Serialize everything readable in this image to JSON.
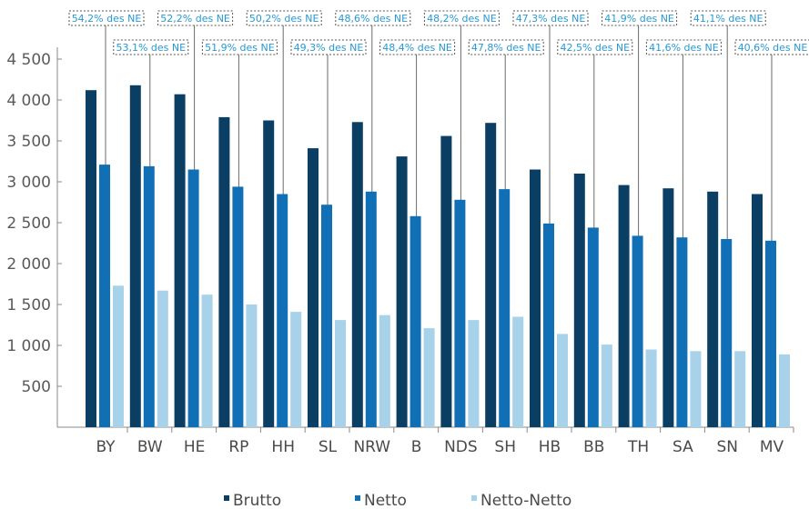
{
  "chart_data": {
    "type": "bar",
    "categories": [
      "BY",
      "BW",
      "HE",
      "RP",
      "HH",
      "SL",
      "NRW",
      "B",
      "NDS",
      "SH",
      "HB",
      "BB",
      "TH",
      "SA",
      "SN",
      "MV"
    ],
    "series": [
      {
        "name": "Brutto",
        "values": [
          4120,
          4180,
          4070,
          3790,
          3750,
          3410,
          3730,
          3310,
          3560,
          3720,
          3150,
          3100,
          2960,
          2920,
          2880,
          2850
        ]
      },
      {
        "name": "Netto",
        "values": [
          3210,
          3190,
          3150,
          2940,
          2850,
          2720,
          2880,
          2580,
          2780,
          2910,
          2490,
          2440,
          2340,
          2320,
          2300,
          2280
        ]
      },
      {
        "name": "Netto-Netto",
        "values": [
          1730,
          1670,
          1620,
          1500,
          1410,
          1310,
          1370,
          1210,
          1310,
          1350,
          1140,
          1010,
          950,
          930,
          930,
          890
        ]
      }
    ],
    "annotations": [
      "54,2% des NE",
      "53,1% des NE",
      "52,2% des NE",
      "51,9% des NE",
      "50,2% des NE",
      "49,3% des NE",
      "48,6% des NE",
      "48,4% des NE",
      "48,2% des NE",
      "47,8% des NE",
      "47,3% des NE",
      "42,5% des NE",
      "41,9% des NE",
      "41,6% des NE",
      "41,1% des NE",
      "40,6% des NE"
    ],
    "y_ticks": [
      "500",
      "1 000",
      "1 500",
      "2 000",
      "2 500",
      "3 000",
      "3 500",
      "4 000",
      "4 500"
    ],
    "y_tick_values": [
      500,
      1000,
      1500,
      2000,
      2500,
      3000,
      3500,
      4000,
      4500
    ],
    "ylim": [
      0,
      4600
    ],
    "grid": false,
    "legend_position": "bottom",
    "colors": {
      "Brutto": "#0a3e63",
      "Netto": "#1170b5",
      "Netto-Netto": "#a8d1ea",
      "annotation": "#2a98d0",
      "axis": "#8a8a8a"
    }
  }
}
